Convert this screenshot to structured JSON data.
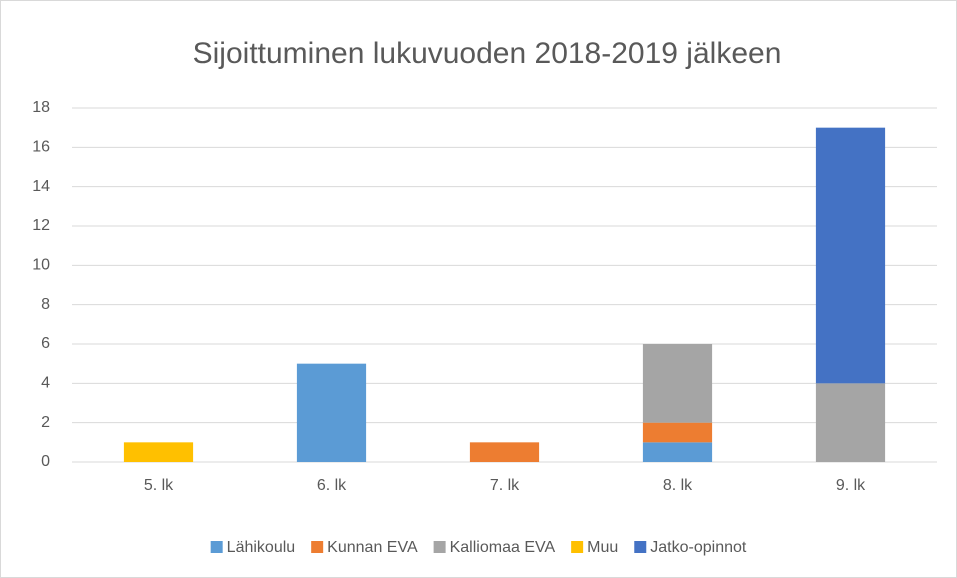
{
  "chart_data": {
    "type": "stacked_bar",
    "title": "Sijoittuminen lukuvuoden 2018-2019 jälkeen",
    "categories": [
      "5. lk",
      "6. lk",
      "7. lk",
      "8. lk",
      "9. lk"
    ],
    "series": [
      {
        "name": "Lähikoulu",
        "color": "#5b9bd5",
        "values": [
          0,
          5,
          0,
          1,
          0
        ]
      },
      {
        "name": "Kunnan EVA",
        "color": "#ed7d31",
        "values": [
          0,
          0,
          1,
          1,
          0
        ]
      },
      {
        "name": "Kalliomaa EVA",
        "color": "#a5a5a5",
        "values": [
          0,
          0,
          0,
          4,
          4
        ]
      },
      {
        "name": "Muu",
        "color": "#ffc000",
        "values": [
          1,
          0,
          0,
          0,
          0
        ]
      },
      {
        "name": "Jatko-opinnot",
        "color": "#4472c4",
        "values": [
          0,
          0,
          0,
          0,
          13
        ]
      }
    ],
    "ylim": [
      0,
      18
    ],
    "yticks": [
      0,
      2,
      4,
      6,
      8,
      10,
      12,
      14,
      16,
      18
    ],
    "grid": true,
    "legend": "bottom"
  }
}
